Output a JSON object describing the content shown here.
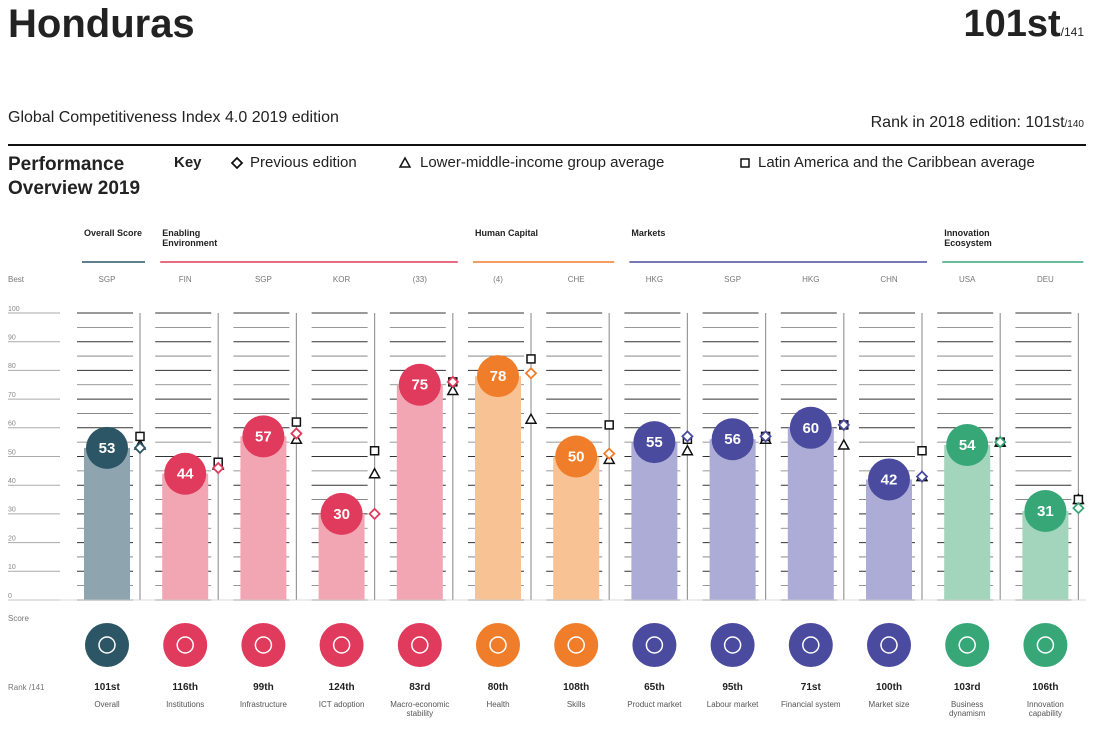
{
  "header": {
    "title": "Honduras",
    "rank": "101st",
    "rank_of": "/141",
    "edition": "Global Competitiveness Index 4.0 2019 edition",
    "prev_rank": "Rank in 2018 edition: 101st",
    "prev_rank_of": "/140"
  },
  "chart_data": {
    "type": "bar",
    "title": "Performance Overview 2019",
    "key": {
      "label": "Key",
      "items": [
        "Previous edition",
        "Lower-middle-income group average",
        "Latin America and the Caribbean average"
      ]
    },
    "best_label": "Best",
    "score_label": "Score",
    "rank_label": "Rank /141",
    "ylim": [
      0,
      100
    ],
    "yticks": [
      0,
      10,
      20,
      30,
      40,
      50,
      60,
      70,
      80,
      90,
      100
    ],
    "groups": [
      {
        "name": "Overall Score",
        "color": "#2c5566",
        "bar_color": "#8ea5b0",
        "pillars": [
          {
            "name": "Overall",
            "best": "SGP",
            "score": 53,
            "previous": 53,
            "lmi": 54,
            "lac": 57,
            "rank": "101st"
          }
        ]
      },
      {
        "name": "Enabling Environment",
        "color": "#e03a5c",
        "bar_color": "#f2a6b4",
        "pillars": [
          {
            "name": "Institutions",
            "best": "FIN",
            "score": 44,
            "previous": 46,
            "lmi": 47,
            "lac": 48,
            "rank": "116th"
          },
          {
            "name": "Infrastructure",
            "best": "SGP",
            "score": 57,
            "previous": 58,
            "lmi": 56,
            "lac": 62,
            "rank": "99th"
          },
          {
            "name": "ICT adoption",
            "best": "KOR",
            "score": 30,
            "previous": 30,
            "lmi": 44,
            "lac": 52,
            "rank": "124th"
          },
          {
            "name": "Macro-economic stability",
            "best": "(33)",
            "score": 75,
            "previous": 76,
            "lmi": 73,
            "lac": 76,
            "rank": "83rd"
          }
        ]
      },
      {
        "name": "Human Capital",
        "color": "#f07d2a",
        "bar_color": "#f8c294",
        "pillars": [
          {
            "name": "Health",
            "best": "(4)",
            "score": 78,
            "previous": 79,
            "lmi": 63,
            "lac": 84,
            "rank": "80th"
          },
          {
            "name": "Skills",
            "best": "CHE",
            "score": 50,
            "previous": 51,
            "lmi": 49,
            "lac": 61,
            "rank": "108th"
          }
        ]
      },
      {
        "name": "Markets",
        "color": "#4a4b9e",
        "bar_color": "#acacd6",
        "pillars": [
          {
            "name": "Product market",
            "best": "HKG",
            "score": 55,
            "previous": 57,
            "lmi": 52,
            "lac": 56,
            "rank": "65th"
          },
          {
            "name": "Labour market",
            "best": "SGP",
            "score": 56,
            "previous": 57,
            "lmi": 56,
            "lac": 57,
            "rank": "95th"
          },
          {
            "name": "Financial system",
            "best": "HKG",
            "score": 60,
            "previous": 61,
            "lmi": 54,
            "lac": 61,
            "rank": "71st"
          },
          {
            "name": "Market size",
            "best": "CHN",
            "score": 42,
            "previous": 43,
            "lmi": 43,
            "lac": 52,
            "rank": "100th"
          }
        ]
      },
      {
        "name": "Innovation Ecosystem",
        "color": "#38a778",
        "bar_color": "#a2d5bb",
        "pillars": [
          {
            "name": "Business dynamism",
            "best": "USA",
            "score": 54,
            "previous": 55,
            "lmi": 55,
            "lac": 55,
            "rank": "103rd"
          },
          {
            "name": "Innovation capability",
            "best": "DEU",
            "score": 31,
            "previous": 32,
            "lmi": 35,
            "lac": 35,
            "rank": "106th"
          }
        ]
      }
    ]
  }
}
